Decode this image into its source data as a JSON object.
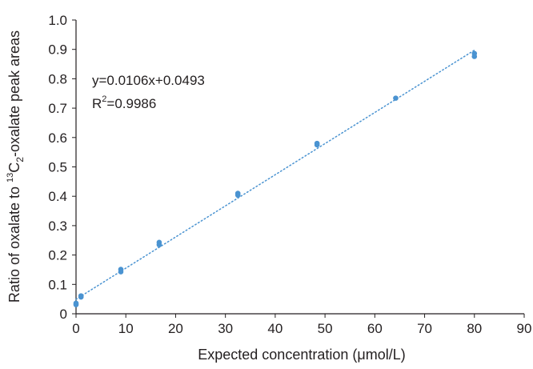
{
  "chart_data": {
    "type": "scatter",
    "xlabel": "Expected concentration (μmol/L)",
    "ylabel": {
      "prefix": "Ratio of oxalate to ",
      "sup": "13",
      "mid": "C",
      "sub": "2",
      "suffix": "-oxalate peak areas"
    },
    "xlim": [
      0,
      90
    ],
    "ylim": [
      0,
      1.0
    ],
    "x_ticks": [
      "0",
      "10",
      "20",
      "30",
      "40",
      "50",
      "60",
      "70",
      "80",
      "90"
    ],
    "y_ticks": [
      "0",
      "0.1",
      "0.2",
      "0.3",
      "0.4",
      "0.5",
      "0.6",
      "0.7",
      "0.8",
      "0.9",
      "1.0"
    ],
    "points": [
      {
        "x": 0,
        "y": 0.031
      },
      {
        "x": 0,
        "y": 0.036
      },
      {
        "x": 1,
        "y": 0.057
      },
      {
        "x": 1,
        "y": 0.061
      },
      {
        "x": 9,
        "y": 0.143
      },
      {
        "x": 9,
        "y": 0.151
      },
      {
        "x": 16.7,
        "y": 0.235
      },
      {
        "x": 16.7,
        "y": 0.243
      },
      {
        "x": 32.5,
        "y": 0.404
      },
      {
        "x": 32.5,
        "y": 0.41
      },
      {
        "x": 48.4,
        "y": 0.575
      },
      {
        "x": 48.4,
        "y": 0.58
      },
      {
        "x": 64.2,
        "y": 0.734
      },
      {
        "x": 80,
        "y": 0.876
      },
      {
        "x": 80,
        "y": 0.886
      }
    ],
    "trendline": {
      "slope": 0.0106,
      "intercept": 0.0493,
      "x_range": [
        0,
        80
      ],
      "style": "dotted"
    },
    "annotations": {
      "equation": "y=0.0106x+0.0493",
      "r2_base": "R",
      "r2_sup": "2",
      "r2_value": "=0.9986"
    },
    "colors": {
      "points": "#4a93d1",
      "trendline": "#4a93d1",
      "axis": "#231f20"
    },
    "grid": false,
    "legend": "none"
  }
}
